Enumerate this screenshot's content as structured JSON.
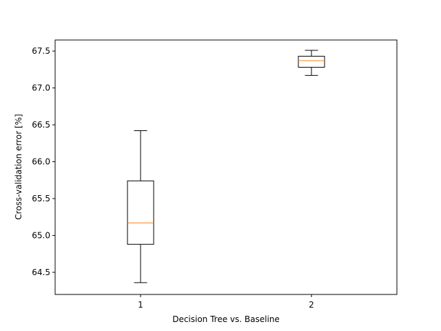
{
  "chart_data": {
    "type": "box",
    "title": "",
    "xlabel": "Decision Tree   vs.   Baseline",
    "ylabel": "Cross-validation error [%]",
    "categories": [
      "1",
      "2"
    ],
    "ylim": [
      64.2,
      67.65
    ],
    "yticks": [
      64.5,
      65.0,
      65.5,
      66.0,
      66.5,
      67.0,
      67.5
    ],
    "ytick_labels": [
      "64.5",
      "65.0",
      "65.5",
      "66.0",
      "66.5",
      "67.0",
      "67.5"
    ],
    "boxes": [
      {
        "label": "1",
        "whisker_low": 64.36,
        "q1": 64.88,
        "median": 65.17,
        "q3": 65.74,
        "whisker_high": 66.42
      },
      {
        "label": "2",
        "whisker_low": 67.17,
        "q1": 67.28,
        "median": 67.37,
        "q3": 67.43,
        "whisker_high": 67.51
      }
    ],
    "grid": false,
    "colors": {
      "box": "#000000",
      "median": "#ff7f0e",
      "axes": "#000000"
    }
  }
}
